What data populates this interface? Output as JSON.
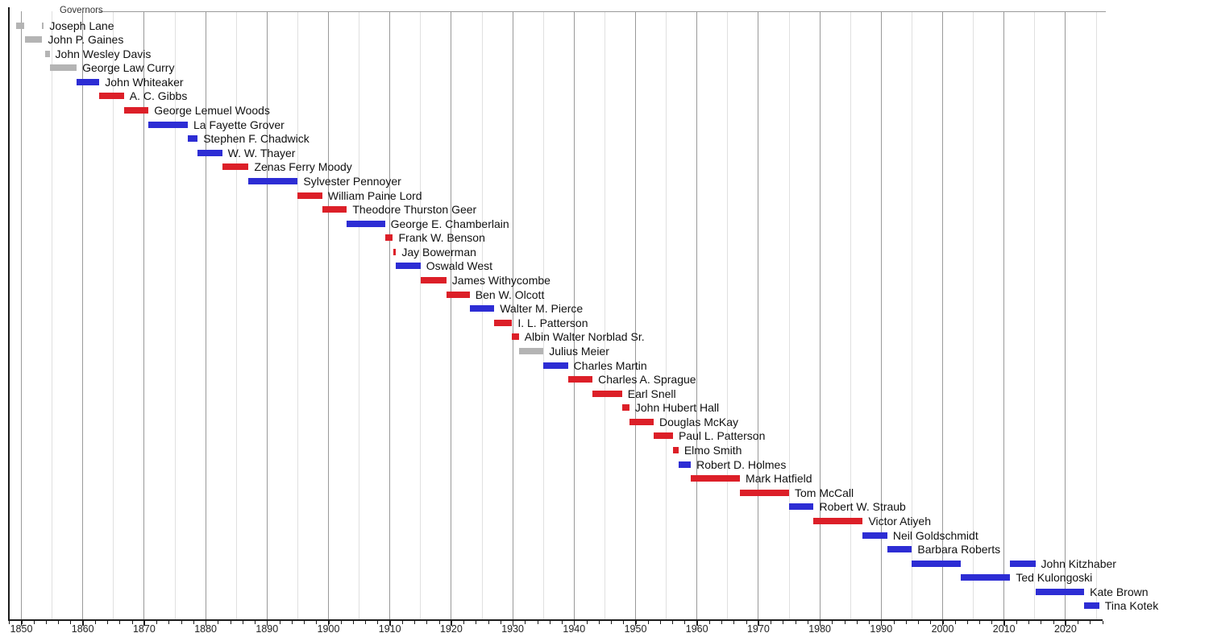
{
  "chart_data": {
    "type": "bar",
    "subtype": "horizontal-timeline-gantt",
    "title": "Governors",
    "x_axis": {
      "range": [
        1848,
        2026
      ],
      "major_tick_years": [
        1850,
        1860,
        1870,
        1880,
        1890,
        1900,
        1910,
        1920,
        1930,
        1940,
        1950,
        1960,
        1970,
        1980,
        1990,
        2000,
        2010,
        2020
      ],
      "major_tick_labels": [
        "1850",
        "1860",
        "1870",
        "1880",
        "1890",
        "1900",
        "1910",
        "1920",
        "1930",
        "1940",
        "1950",
        "1960",
        "1970",
        "1980",
        "1990",
        "2000",
        "2010",
        "2020"
      ],
      "minor_tick_step_years": 2,
      "gridline_step_years": 5,
      "grid_on": true
    },
    "legend_position": "top-left-embedded-in-frame",
    "bar_colors": {
      "gray": "#b4b4b4",
      "blue": "#2d2dd4",
      "red": "#dc1f28"
    },
    "governors": [
      {
        "name": "Joseph Lane",
        "color": "gray",
        "terms": [
          [
            1849.2,
            1850.45
          ],
          [
            1853.3,
            1853.65
          ]
        ]
      },
      {
        "name": "John P. Gaines",
        "color": "gray",
        "terms": [
          [
            1850.6,
            1853.4
          ]
        ]
      },
      {
        "name": "John Wesley Davis",
        "color": "gray",
        "terms": [
          [
            1853.9,
            1854.6
          ]
        ]
      },
      {
        "name": "George Law Curry",
        "color": "gray",
        "terms": [
          [
            1854.6,
            1859.0
          ]
        ]
      },
      {
        "name": "John Whiteaker",
        "color": "blue",
        "terms": [
          [
            1859.0,
            1862.7
          ]
        ]
      },
      {
        "name": "A. C. Gibbs",
        "color": "red",
        "terms": [
          [
            1862.7,
            1866.7
          ]
        ]
      },
      {
        "name": "George Lemuel Woods",
        "color": "red",
        "terms": [
          [
            1866.7,
            1870.7
          ]
        ]
      },
      {
        "name": "La Fayette Grover",
        "color": "blue",
        "terms": [
          [
            1870.7,
            1877.1
          ]
        ]
      },
      {
        "name": "Stephen F. Chadwick",
        "color": "blue",
        "terms": [
          [
            1877.1,
            1878.7
          ]
        ]
      },
      {
        "name": "W. W. Thayer",
        "color": "blue",
        "terms": [
          [
            1878.7,
            1882.7
          ]
        ]
      },
      {
        "name": "Zenas Ferry Moody",
        "color": "red",
        "terms": [
          [
            1882.7,
            1887.0
          ]
        ]
      },
      {
        "name": "Sylvester Pennoyer",
        "color": "blue",
        "terms": [
          [
            1887.0,
            1895.0
          ]
        ]
      },
      {
        "name": "William Paine Lord",
        "color": "red",
        "terms": [
          [
            1895.0,
            1899.0
          ]
        ]
      },
      {
        "name": "Theodore Thurston Geer",
        "color": "red",
        "terms": [
          [
            1899.0,
            1903.0
          ]
        ]
      },
      {
        "name": "George E. Chamberlain",
        "color": "blue",
        "terms": [
          [
            1903.0,
            1909.2
          ]
        ]
      },
      {
        "name": "Frank W. Benson",
        "color": "red",
        "terms": [
          [
            1909.2,
            1910.5
          ]
        ]
      },
      {
        "name": "Jay Bowerman",
        "color": "red",
        "terms": [
          [
            1910.5,
            1911.0
          ]
        ]
      },
      {
        "name": "Oswald West",
        "color": "blue",
        "terms": [
          [
            1911.0,
            1915.0
          ]
        ]
      },
      {
        "name": "James Withycombe",
        "color": "red",
        "terms": [
          [
            1915.0,
            1919.2
          ]
        ]
      },
      {
        "name": "Ben W. Olcott",
        "color": "red",
        "terms": [
          [
            1919.2,
            1923.0
          ]
        ]
      },
      {
        "name": "Walter M. Pierce",
        "color": "blue",
        "terms": [
          [
            1923.0,
            1927.0
          ]
        ]
      },
      {
        "name": "I. L. Patterson",
        "color": "red",
        "terms": [
          [
            1927.0,
            1929.9
          ]
        ]
      },
      {
        "name": "Albin Walter Norblad Sr.",
        "color": "red",
        "terms": [
          [
            1929.9,
            1931.0
          ]
        ]
      },
      {
        "name": "Julius Meier",
        "color": "gray",
        "terms": [
          [
            1931.0,
            1935.0
          ]
        ]
      },
      {
        "name": "Charles Martin",
        "color": "blue",
        "terms": [
          [
            1935.0,
            1939.0
          ]
        ]
      },
      {
        "name": "Charles A. Sprague",
        "color": "red",
        "terms": [
          [
            1939.0,
            1943.0
          ]
        ]
      },
      {
        "name": "Earl Snell",
        "color": "red",
        "terms": [
          [
            1943.0,
            1947.8
          ]
        ]
      },
      {
        "name": "John Hubert Hall",
        "color": "red",
        "terms": [
          [
            1947.8,
            1949.0
          ]
        ]
      },
      {
        "name": "Douglas McKay",
        "color": "red",
        "terms": [
          [
            1949.0,
            1952.95
          ]
        ]
      },
      {
        "name": "Paul L. Patterson",
        "color": "red",
        "terms": [
          [
            1952.95,
            1956.1
          ]
        ]
      },
      {
        "name": "Elmo Smith",
        "color": "red",
        "terms": [
          [
            1956.1,
            1957.0
          ]
        ]
      },
      {
        "name": "Robert D. Holmes",
        "color": "blue",
        "terms": [
          [
            1957.0,
            1959.0
          ]
        ]
      },
      {
        "name": "Mark Hatfield",
        "color": "red",
        "terms": [
          [
            1959.0,
            1967.0
          ]
        ]
      },
      {
        "name": "Tom McCall",
        "color": "red",
        "terms": [
          [
            1967.0,
            1975.0
          ]
        ]
      },
      {
        "name": "Robert W. Straub",
        "color": "blue",
        "terms": [
          [
            1975.0,
            1979.0
          ]
        ]
      },
      {
        "name": "Victor Atiyeh",
        "color": "red",
        "terms": [
          [
            1979.0,
            1987.0
          ]
        ]
      },
      {
        "name": "Neil Goldschmidt",
        "color": "blue",
        "terms": [
          [
            1987.0,
            1991.0
          ]
        ]
      },
      {
        "name": "Barbara Roberts",
        "color": "blue",
        "terms": [
          [
            1991.0,
            1995.0
          ]
        ]
      },
      {
        "name": "John Kitzhaber",
        "color": "blue",
        "terms": [
          [
            1995.0,
            2003.0
          ],
          [
            2011.0,
            2015.1
          ]
        ]
      },
      {
        "name": "Ted Kulongoski",
        "color": "blue",
        "terms": [
          [
            2003.0,
            2011.0
          ]
        ]
      },
      {
        "name": "Kate Brown",
        "color": "blue",
        "terms": [
          [
            2015.1,
            2023.05
          ]
        ]
      },
      {
        "name": "Tina Kotek",
        "color": "blue",
        "terms": [
          [
            2023.05,
            2025.5
          ]
        ]
      }
    ]
  }
}
